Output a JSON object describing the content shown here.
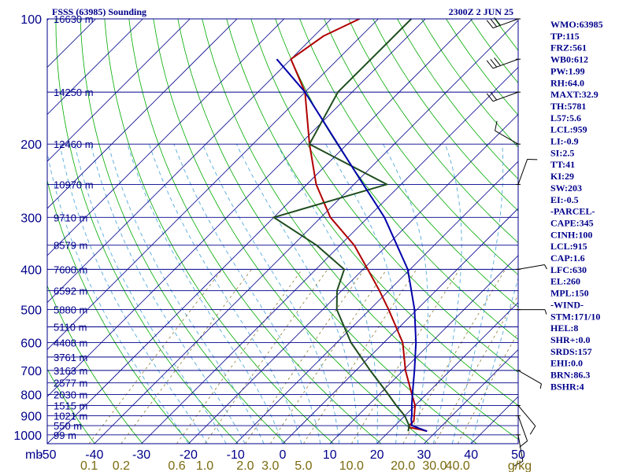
{
  "header": {
    "title": "FSSS (63985) Sounding",
    "time": "2300Z  2 JUN 25"
  },
  "indices": [
    "WMO:63985",
    "TP:115",
    "FRZ:561",
    "WB0:612",
    "PW:1.99",
    "RH:64.0",
    "MAXT:32.9",
    "TH:5781",
    "L57:5.6",
    "LCL:959",
    "LI:-0.9",
    "SI:2.5",
    "TT:41",
    "KI:29",
    "SW:203",
    "EI:-0.5",
    "-PARCEL-",
    "CAPE:345",
    "CINH:100",
    "LCL:915",
    "CAP:1.6",
    "LFC:630",
    "EL:260",
    "MPL:150",
    "-WIND-",
    "STM:171/10",
    "HEL:8",
    "SHR+:0.0",
    "SRDS:157",
    "EHI:0.0",
    "BRN:86.3",
    "BSHR:4"
  ],
  "chart_data": {
    "type": "line",
    "title": "FSSS (63985) Sounding",
    "skew_t": true,
    "pressure_axis": {
      "unit": "mb",
      "range": [
        1000,
        100
      ],
      "scale": "log",
      "labels": [
        "100",
        "200",
        "300",
        "400",
        "500",
        "600",
        "700",
        "800",
        "900",
        "1000"
      ]
    },
    "temperature_axis": {
      "unit": "°C",
      "range": [
        -50,
        50
      ],
      "labels": [
        "-50",
        "-40",
        "-30",
        "-20",
        "-10",
        "0",
        "10",
        "20",
        "30",
        "40",
        "50"
      ]
    },
    "mixing_ratio_labels": [
      "0.1",
      "0.2",
      "0.6",
      "1.0",
      "2.0",
      "3.0",
      "5.0",
      "10.0",
      "20.0",
      "30.0",
      "40.0",
      "g/kg"
    ],
    "height_labels": [
      {
        "p": 100,
        "label": "16630 m"
      },
      {
        "p": 150,
        "label": "14250 m"
      },
      {
        "p": 200,
        "label": "12460 m"
      },
      {
        "p": 250,
        "label": "10970 m"
      },
      {
        "p": 300,
        "label": "9710 m"
      },
      {
        "p": 350,
        "label": "8579 m"
      },
      {
        "p": 400,
        "label": "7600 m"
      },
      {
        "p": 450,
        "label": "6592 m"
      },
      {
        "p": 500,
        "label": "5880 m"
      },
      {
        "p": 550,
        "label": "5110 m"
      },
      {
        "p": 600,
        "label": "4408 m"
      },
      {
        "p": 650,
        "label": "3761 m"
      },
      {
        "p": 700,
        "label": "3163 m"
      },
      {
        "p": 750,
        "label": "2577 m"
      },
      {
        "p": 800,
        "label": "2030 m"
      },
      {
        "p": 850,
        "label": "1515 m"
      },
      {
        "p": 900,
        "label": "1021 m"
      },
      {
        "p": 950,
        "label": "550 m"
      },
      {
        "p": 1000,
        "label": "99 m"
      }
    ],
    "series": [
      {
        "key": "temperature",
        "color": "#b00000",
        "points": [
          [
            980,
            28
          ],
          [
            970,
            26
          ],
          [
            960,
            23.5
          ],
          [
            950,
            23
          ],
          [
            925,
            23
          ],
          [
            900,
            22
          ],
          [
            850,
            20
          ],
          [
            800,
            17
          ],
          [
            700,
            10.5
          ],
          [
            600,
            4
          ],
          [
            500,
            -6
          ],
          [
            450,
            -12
          ],
          [
            400,
            -19
          ],
          [
            350,
            -27
          ],
          [
            300,
            -38
          ],
          [
            250,
            -48
          ],
          [
            200,
            -58
          ],
          [
            150,
            -70
          ],
          [
            125,
            -80
          ],
          [
            110,
            -78
          ],
          [
            100,
            -74
          ]
        ]
      },
      {
        "key": "dewpoint",
        "color": "#1f4d1f",
        "points": [
          [
            980,
            24
          ],
          [
            950,
            23
          ],
          [
            900,
            20
          ],
          [
            850,
            16
          ],
          [
            800,
            12
          ],
          [
            700,
            3
          ],
          [
            600,
            -7
          ],
          [
            500,
            -17
          ],
          [
            450,
            -21
          ],
          [
            400,
            -24
          ],
          [
            350,
            -35
          ],
          [
            300,
            -50
          ],
          [
            250,
            -33
          ],
          [
            200,
            -58
          ],
          [
            150,
            -63
          ],
          [
            120,
            -63
          ],
          [
            100,
            -63
          ]
        ]
      },
      {
        "key": "parcel",
        "color": "#0000aa",
        "points": [
          [
            980,
            28
          ],
          [
            950,
            23.6
          ],
          [
            915,
            22
          ],
          [
            900,
            21.5
          ],
          [
            850,
            19.3
          ],
          [
            800,
            17.1
          ],
          [
            700,
            12.4
          ],
          [
            600,
            6.8
          ],
          [
            500,
            -0.5
          ],
          [
            400,
            -10.5
          ],
          [
            300,
            -26.5
          ],
          [
            250,
            -38
          ],
          [
            200,
            -52
          ],
          [
            150,
            -70
          ],
          [
            125,
            -83
          ]
        ]
      }
    ],
    "wind_barbs": [
      {
        "p": 1000,
        "dir": 170,
        "spd": 10
      },
      {
        "p": 900,
        "dir": 160,
        "spd": 10
      },
      {
        "p": 850,
        "dir": 140,
        "spd": 10
      },
      {
        "p": 700,
        "dir": 120,
        "spd": 5
      },
      {
        "p": 500,
        "dir": 90,
        "spd": 5
      },
      {
        "p": 400,
        "dir": 80,
        "spd": 5
      },
      {
        "p": 250,
        "dir": 20,
        "spd": 10
      },
      {
        "p": 200,
        "dir": 300,
        "spd": 10
      },
      {
        "p": 150,
        "dir": 250,
        "spd": 20
      },
      {
        "p": 125,
        "dir": 250,
        "spd": 30
      },
      {
        "p": 100,
        "dir": 250,
        "spd": 30
      }
    ],
    "colors": {
      "isobar": "#00008b",
      "isotherm": "#00008b",
      "dry_adiabat": "#00aa00",
      "moist_adiabat": "#55aadd",
      "mixing_ratio": "#8b7a2e",
      "barb": "#000000"
    }
  }
}
